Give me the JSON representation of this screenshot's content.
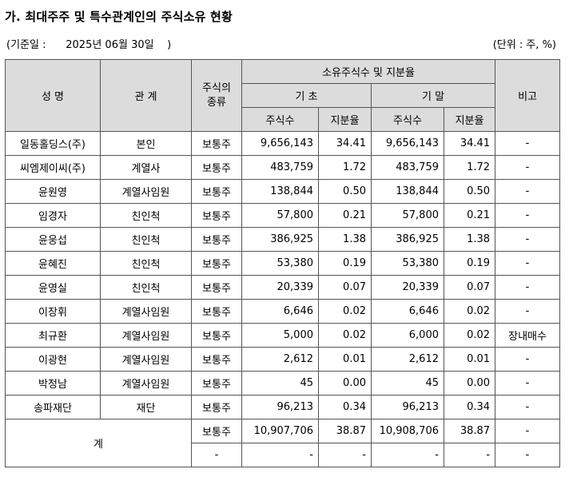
{
  "title": "가. 최대주주 및 특수관계인의 주식소유 현황",
  "base_date": "(기준일 :      2025년 06월 30일    )",
  "unit": "(단위 : 주, %)",
  "headers": {
    "name": "성 명",
    "relation": "관 계",
    "stock_type": "주식의\n종류",
    "holdings": "소유주식수 및 지분율",
    "begin": "기 초",
    "end": "기 말",
    "shares": "주식수",
    "ratio": "지분율",
    "note": "비고"
  },
  "rows": [
    {
      "name": "일동홀딩스(주)",
      "relation": "본인",
      "type": "보통주",
      "begin_shares": "9,656,143",
      "begin_ratio": "34.41",
      "end_shares": "9,656,143",
      "end_ratio": "34.41",
      "note": "-"
    },
    {
      "name": "씨엠제이씨(주)",
      "relation": "계열사",
      "type": "보통주",
      "begin_shares": "483,759",
      "begin_ratio": "1.72",
      "end_shares": "483,759",
      "end_ratio": "1.72",
      "note": "-"
    },
    {
      "name": "윤원영",
      "relation": "계열사임원",
      "type": "보통주",
      "begin_shares": "138,844",
      "begin_ratio": "0.50",
      "end_shares": "138,844",
      "end_ratio": "0.50",
      "note": "-"
    },
    {
      "name": "임경자",
      "relation": "친인척",
      "type": "보통주",
      "begin_shares": "57,800",
      "begin_ratio": "0.21",
      "end_shares": "57,800",
      "end_ratio": "0.21",
      "note": "-"
    },
    {
      "name": "윤웅섭",
      "relation": "친인척",
      "type": "보통주",
      "begin_shares": "386,925",
      "begin_ratio": "1.38",
      "end_shares": "386,925",
      "end_ratio": "1.38",
      "note": "-"
    },
    {
      "name": "윤혜진",
      "relation": "친인척",
      "type": "보통주",
      "begin_shares": "53,380",
      "begin_ratio": "0.19",
      "end_shares": "53,380",
      "end_ratio": "0.19",
      "note": "-"
    },
    {
      "name": "윤영실",
      "relation": "친인척",
      "type": "보통주",
      "begin_shares": "20,339",
      "begin_ratio": "0.07",
      "end_shares": "20,339",
      "end_ratio": "0.07",
      "note": "-"
    },
    {
      "name": "이장휘",
      "relation": "계열사임원",
      "type": "보통주",
      "begin_shares": "6,646",
      "begin_ratio": "0.02",
      "end_shares": "6,646",
      "end_ratio": "0.02",
      "note": "-"
    },
    {
      "name": "최규환",
      "relation": "계열사임원",
      "type": "보통주",
      "begin_shares": "5,000",
      "begin_ratio": "0.02",
      "end_shares": "6,000",
      "end_ratio": "0.02",
      "note": "장내매수"
    },
    {
      "name": "이광현",
      "relation": "계열사임원",
      "type": "보통주",
      "begin_shares": "2,612",
      "begin_ratio": "0.01",
      "end_shares": "2,612",
      "end_ratio": "0.01",
      "note": "-"
    },
    {
      "name": "박정남",
      "relation": "계열사임원",
      "type": "보통주",
      "begin_shares": "45",
      "begin_ratio": "0.00",
      "end_shares": "45",
      "end_ratio": "0.00",
      "note": "-"
    },
    {
      "name": "송파재단",
      "relation": "재단",
      "type": "보통주",
      "begin_shares": "96,213",
      "begin_ratio": "0.34",
      "end_shares": "96,213",
      "end_ratio": "0.34",
      "note": "-"
    }
  ],
  "total": {
    "label": "계",
    "rows": [
      {
        "type": "보통주",
        "begin_shares": "10,907,706",
        "begin_ratio": "38.87",
        "end_shares": "10,908,706",
        "end_ratio": "38.87",
        "note": "-"
      },
      {
        "type": "-",
        "begin_shares": "-",
        "begin_ratio": "-",
        "end_shares": "-",
        "end_ratio": "-",
        "note": "-"
      }
    ]
  }
}
